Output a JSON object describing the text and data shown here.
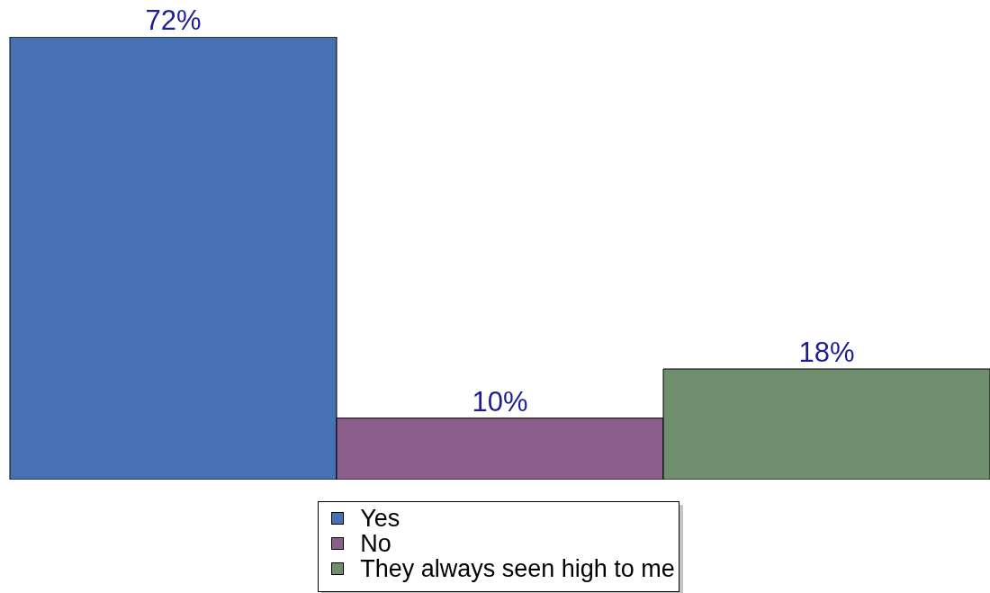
{
  "chart_data": {
    "type": "bar",
    "categories": [
      null
    ],
    "series": [
      {
        "name": "Yes",
        "color": "#4672b4",
        "values": [
          72
        ],
        "value_labels": [
          "72%"
        ]
      },
      {
        "name": "No",
        "color": "#8b5e8c",
        "values": [
          10
        ],
        "value_labels": [
          "10%"
        ]
      },
      {
        "name": "They always seen high to me",
        "color": "#6e8e6e",
        "values": [
          18
        ],
        "value_labels": [
          "18%"
        ]
      }
    ],
    "legend": "bottom",
    "tick_labels": false
  }
}
